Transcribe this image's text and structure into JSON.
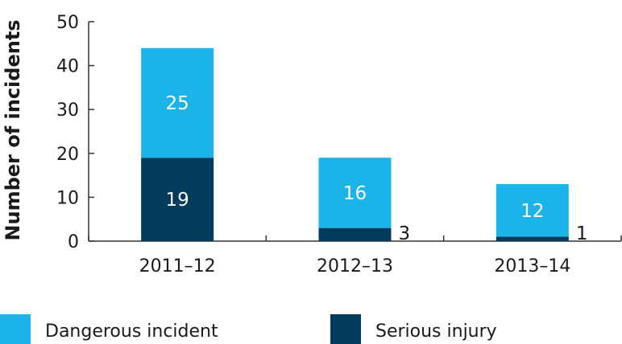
{
  "chart_data": {
    "type": "bar",
    "stacked": true,
    "categories": [
      "2011–12",
      "2012–13",
      "2013–14"
    ],
    "series": [
      {
        "name": "Serious injury",
        "values": [
          19,
          3,
          1
        ],
        "color": "#003a5d"
      },
      {
        "name": "Dangerous incident",
        "values": [
          25,
          16,
          12
        ],
        "color": "#1cb4e8"
      }
    ],
    "ylabel": "Number of incidents",
    "xlabel": "",
    "ylim": [
      0,
      50
    ],
    "yticks": [
      0,
      10,
      20,
      30,
      40,
      50
    ],
    "grid": false,
    "legend": {
      "placement": "bottom",
      "entries": [
        {
          "label": "Dangerous incident",
          "color": "#1cb4e8"
        },
        {
          "label": "Serious injury",
          "color": "#003a5d"
        }
      ]
    }
  }
}
